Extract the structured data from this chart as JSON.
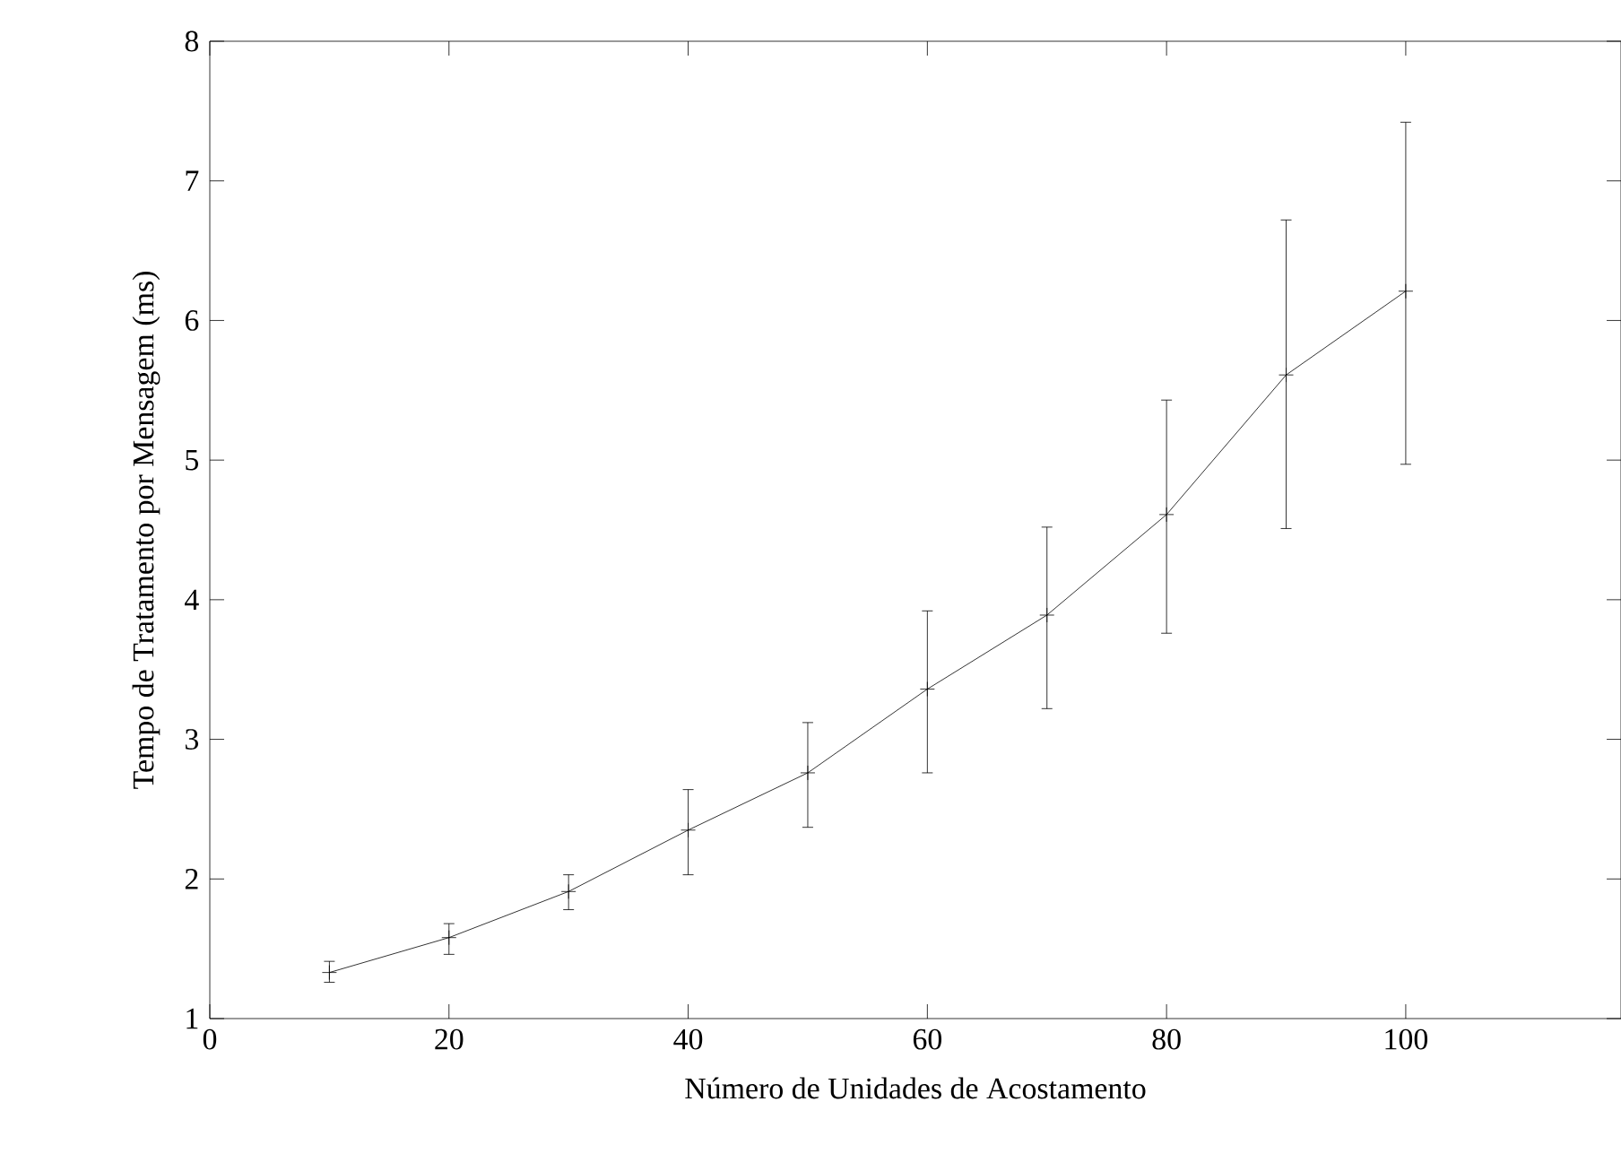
{
  "chart_data": {
    "type": "line",
    "xlabel": "Número de Unidades de Acostamento",
    "ylabel": "Tempo de Tratamento por Mensagem (ms)",
    "x": [
      10,
      20,
      30,
      40,
      50,
      60,
      70,
      80,
      90,
      100
    ],
    "series": [
      {
        "color": "#000000",
        "values": [
          1.33,
          1.58,
          1.91,
          2.35,
          2.76,
          3.36,
          3.89,
          4.61,
          5.61,
          6.21
        ],
        "errors": [
          [
            1.26,
            1.41
          ],
          [
            1.46,
            1.68
          ],
          [
            1.78,
            2.03
          ],
          [
            2.03,
            2.64
          ],
          [
            2.37,
            3.12
          ],
          [
            2.76,
            3.92
          ],
          [
            3.22,
            4.52
          ],
          [
            3.76,
            5.43
          ],
          [
            4.51,
            6.72
          ],
          [
            4.97,
            7.42
          ]
        ]
      }
    ],
    "xlim": [
      0,
      118
    ],
    "ylim": [
      1,
      8
    ],
    "xticks": [
      0,
      20,
      40,
      60,
      80,
      100
    ],
    "yticks": [
      1,
      2,
      3,
      4,
      5,
      6,
      7,
      8
    ],
    "marker": "cross",
    "line_style": "solid"
  }
}
